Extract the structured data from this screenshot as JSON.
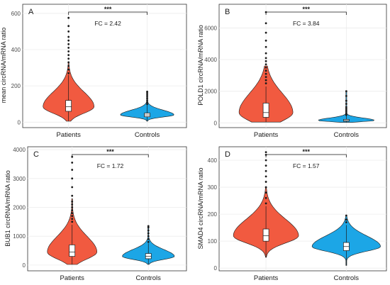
{
  "colors": {
    "patients": "#f15a40",
    "controls": "#1ca6e6"
  },
  "chart_data": [
    {
      "type": "violin",
      "panel": "A",
      "ylabel": "mean circRNA/mRNA ratio",
      "categories": [
        "Patients",
        "Controls"
      ],
      "ylim": [
        -30,
        650
      ],
      "yticks": [
        0,
        200,
        400,
        600
      ],
      "annotation": {
        "significance": "***",
        "fold_change": "FC = 2.42"
      },
      "series": [
        {
          "name": "Patients",
          "min": 5,
          "q1": 60,
          "median": 85,
          "q3": 120,
          "max": 260,
          "vmax": 330,
          "outliers": [
            270,
            290,
            310,
            330,
            350,
            370,
            390,
            410,
            430,
            450,
            470,
            500,
            530,
            575
          ]
        },
        {
          "name": "Controls",
          "min": 5,
          "q1": 30,
          "median": 40,
          "q3": 50,
          "max": 95,
          "vmax": 170,
          "outliers": [
            100,
            110,
            120,
            130,
            140,
            150,
            160,
            168
          ]
        }
      ]
    },
    {
      "type": "violin",
      "panel": "B",
      "ylabel": "POLD1 circRNA/mRNA ratio",
      "categories": [
        "Patients",
        "Controls"
      ],
      "ylim": [
        -300,
        7500
      ],
      "yticks": [
        0,
        2000,
        4000,
        6000
      ],
      "annotation": {
        "significance": "***",
        "fold_change": "FC = 3.84"
      },
      "series": [
        {
          "name": "Patients",
          "min": 50,
          "q1": 350,
          "median": 650,
          "q3": 1250,
          "max": 2300,
          "vmax": 3600,
          "outliers": [
            2500,
            2700,
            2900,
            3100,
            3300,
            3500,
            3700,
            3900,
            4100,
            4400,
            4800,
            5200,
            5700,
            6300,
            7000
          ]
        },
        {
          "name": "Controls",
          "min": 30,
          "q1": 100,
          "median": 150,
          "q3": 220,
          "max": 450,
          "vmax": 2000,
          "outliers": [
            500,
            600,
            700,
            800,
            900,
            1000,
            1200,
            1400,
            1700,
            2000
          ]
        }
      ]
    },
    {
      "type": "violin",
      "panel": "C",
      "ylabel": "BUB1 circRNA/mRNA ratio",
      "categories": [
        "Patients",
        "Controls"
      ],
      "ylim": [
        -200,
        4100
      ],
      "yticks": [
        0,
        1000,
        2000,
        3000,
        4000
      ],
      "annotation": {
        "significance": "***",
        "fold_change": "FC = 1.72"
      },
      "series": [
        {
          "name": "Patients",
          "min": 20,
          "q1": 300,
          "median": 450,
          "q3": 700,
          "max": 1400,
          "vmax": 2300,
          "outliers": [
            1500,
            1600,
            1700,
            1800,
            1900,
            2000,
            2100,
            2200,
            2400,
            2700,
            3000,
            3300,
            3550,
            3750
          ]
        },
        {
          "name": "Controls",
          "min": 20,
          "q1": 220,
          "median": 300,
          "q3": 400,
          "max": 750,
          "vmax": 1350,
          "outliers": [
            800,
            900,
            1000,
            1100,
            1200,
            1300,
            1350
          ]
        }
      ]
    },
    {
      "type": "violin",
      "panel": "D",
      "ylabel": "SMAD4 circRNA/mRNA ratio",
      "categories": [
        "Patients",
        "Controls"
      ],
      "ylim": [
        -10,
        450
      ],
      "yticks": [
        0,
        100,
        200,
        300,
        400
      ],
      "annotation": {
        "significance": "***",
        "fold_change": "FC = 1.57"
      },
      "series": [
        {
          "name": "Patients",
          "min": 40,
          "q1": 100,
          "median": 120,
          "q3": 145,
          "max": 230,
          "vmax": 300,
          "outliers": [
            240,
            260,
            280,
            300,
            320,
            340,
            360,
            380,
            400,
            420,
            430
          ]
        },
        {
          "name": "Controls",
          "min": 10,
          "q1": 65,
          "median": 80,
          "q3": 95,
          "max": 160,
          "vmax": 195,
          "outliers": [
            170,
            180,
            195
          ]
        }
      ]
    }
  ]
}
